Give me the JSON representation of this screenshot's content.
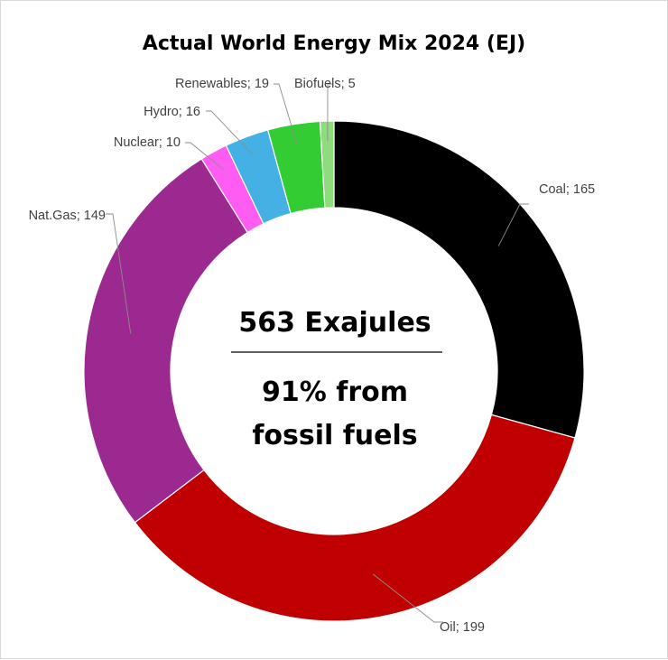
{
  "chart_data": {
    "type": "pie",
    "variant": "donut",
    "title": "Actual World Energy Mix 2024 (EJ)",
    "total_text": "563 Exajules",
    "note_lines": [
      "91% from",
      "fossil fuels"
    ],
    "slices": [
      {
        "name": "Coal",
        "value": 165,
        "label": "Coal; 165",
        "color": "#000000"
      },
      {
        "name": "Oil",
        "value": 199,
        "label": "Oil; 199",
        "color": "#c00000"
      },
      {
        "name": "Nat.Gas",
        "value": 149,
        "label": "Nat.Gas; 149",
        "color": "#9b2990"
      },
      {
        "name": "Nuclear",
        "value": 10,
        "label": "Nuclear; 10",
        "color": "#ff5cf4"
      },
      {
        "name": "Hydro",
        "value": 16,
        "label": "Hydro; 16",
        "color": "#45b0e3"
      },
      {
        "name": "Renewables",
        "value": 19,
        "label": "Renewables; 19",
        "color": "#33cc33"
      },
      {
        "name": "Biofuels",
        "value": 5,
        "label": "Biofuels; 5",
        "color": "#8fdc7e"
      }
    ],
    "legend": "none",
    "data_labels": "outside-with-leader-lines"
  }
}
